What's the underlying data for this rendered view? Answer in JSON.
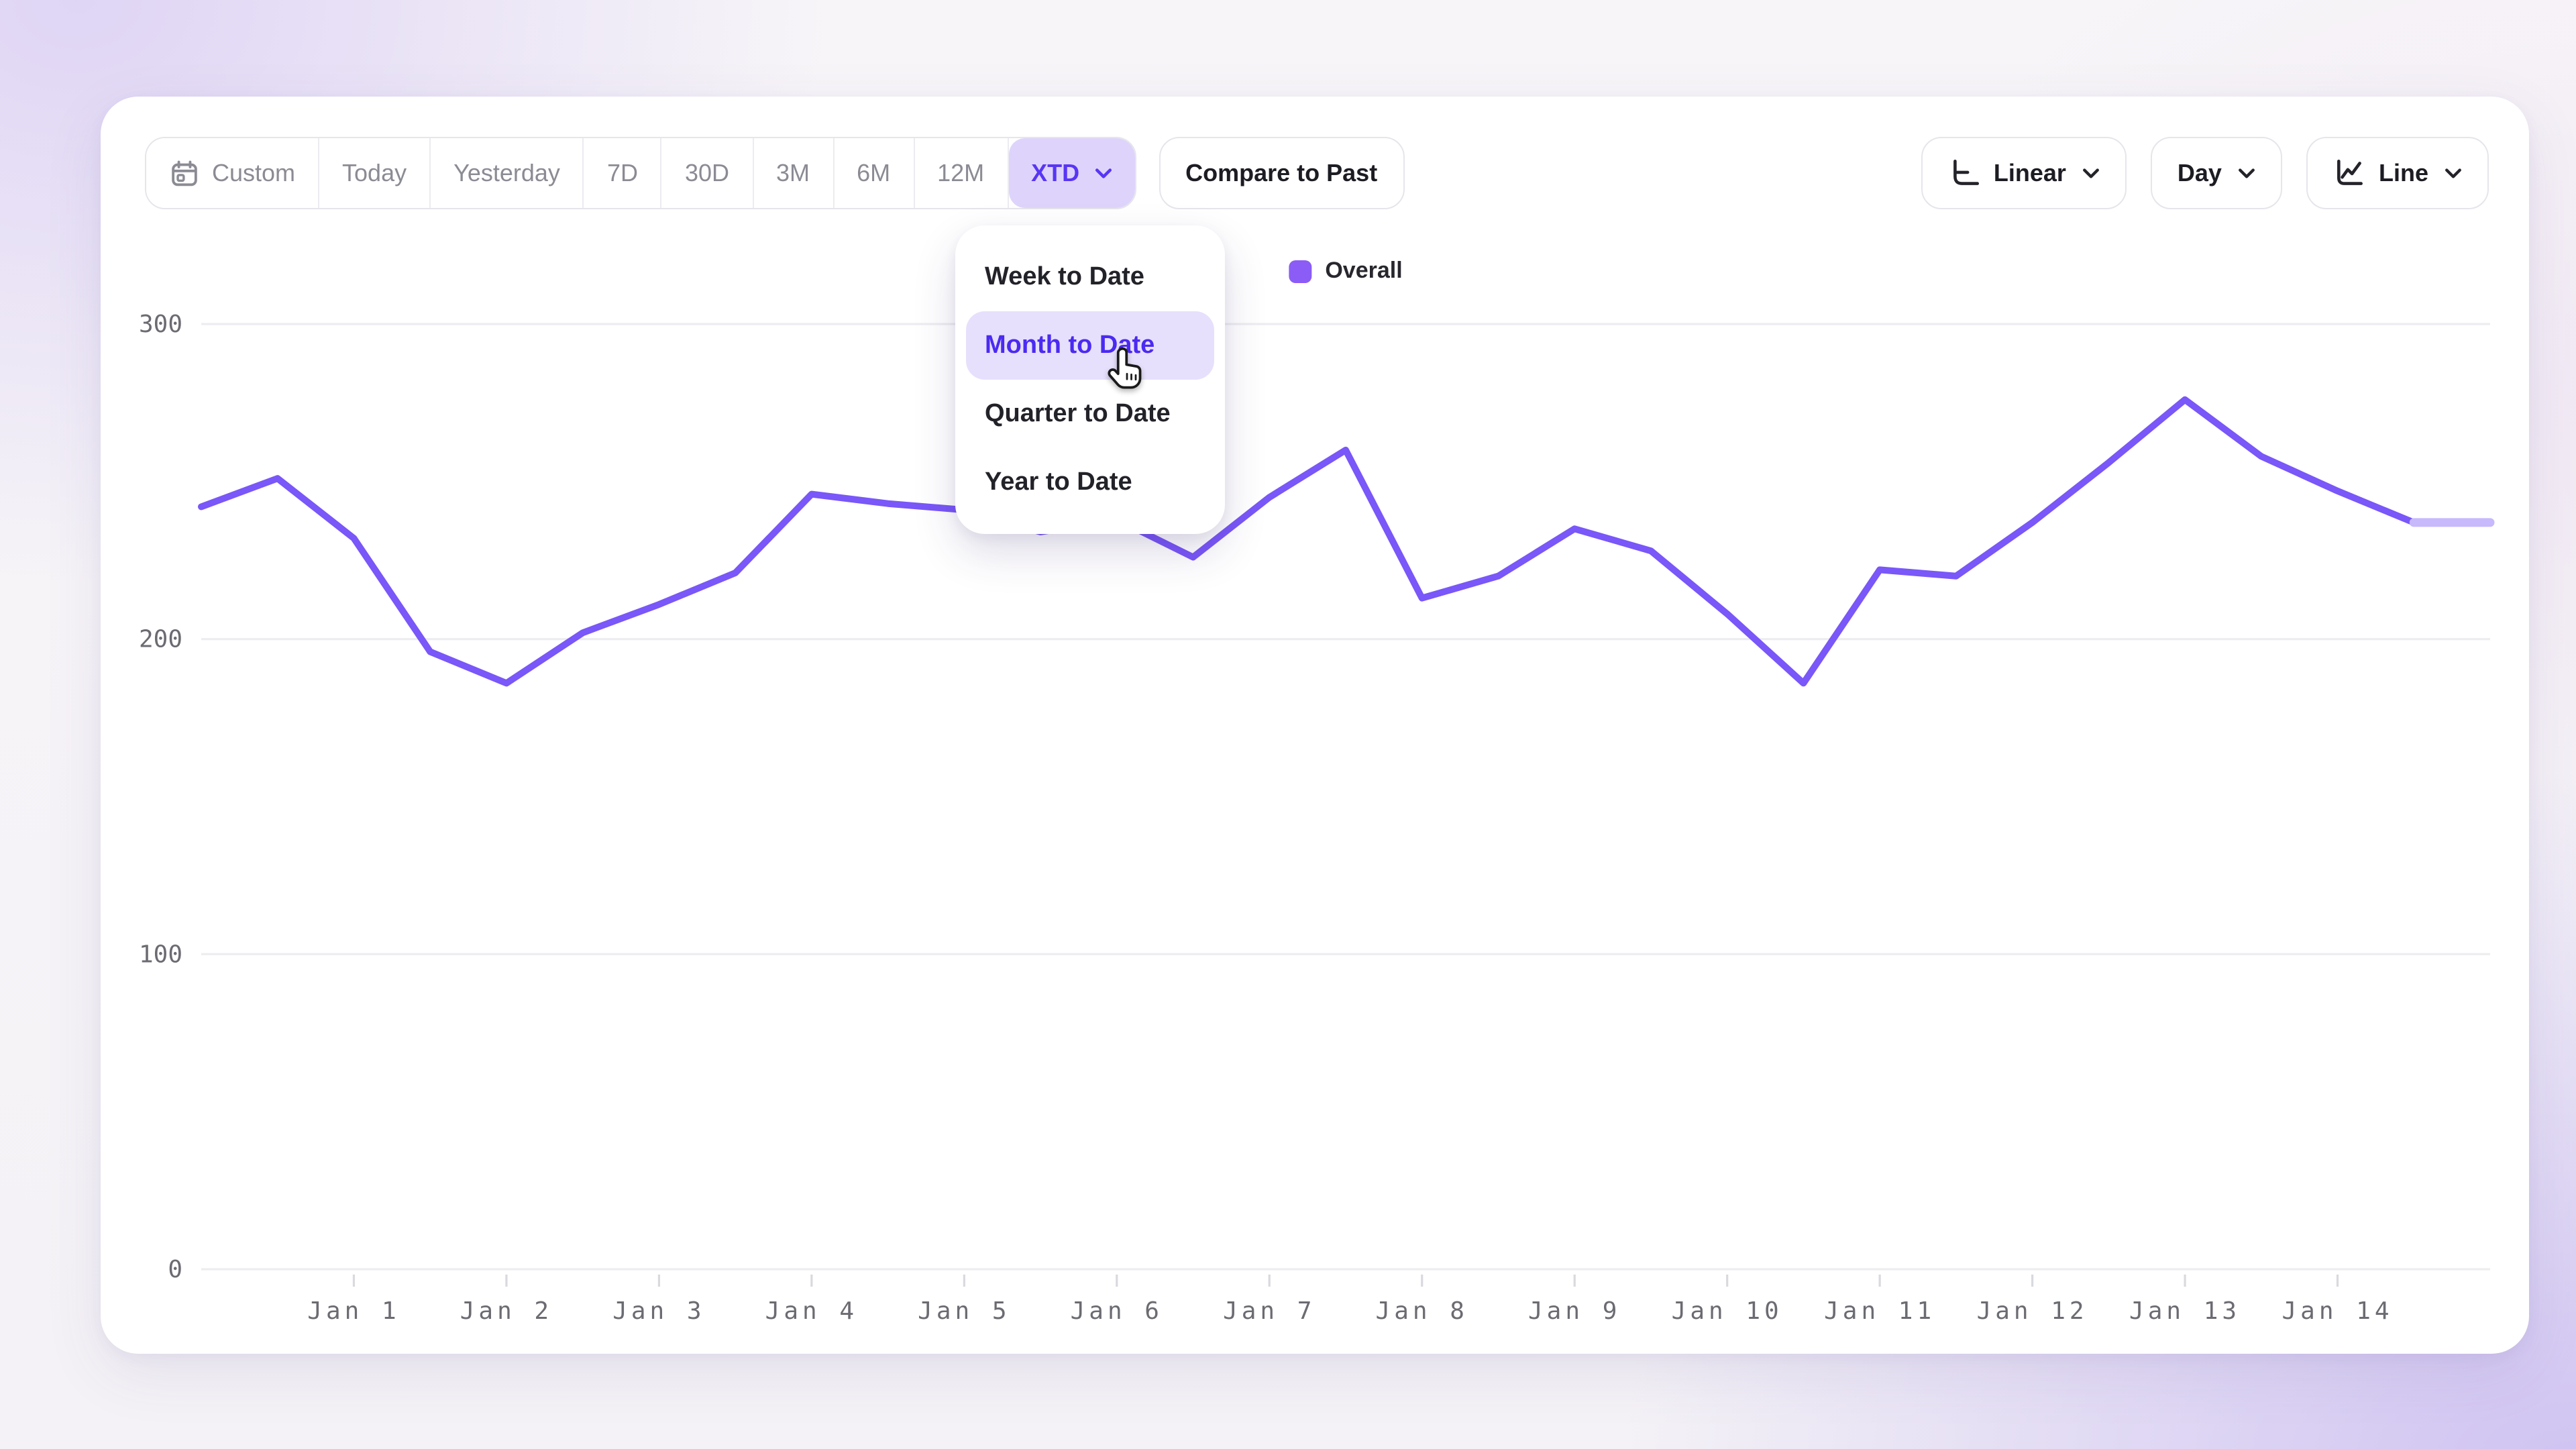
{
  "toolbar": {
    "ranges": [
      {
        "label": "Custom",
        "icon": "calendar",
        "selected": false
      },
      {
        "label": "Today",
        "selected": false
      },
      {
        "label": "Yesterday",
        "selected": false
      },
      {
        "label": "7D",
        "selected": false
      },
      {
        "label": "30D",
        "selected": false
      },
      {
        "label": "3M",
        "selected": false
      },
      {
        "label": "6M",
        "selected": false
      },
      {
        "label": "12M",
        "selected": false
      },
      {
        "label": "XTD",
        "selected": true,
        "chevron": true
      }
    ],
    "compare_label": "Compare to Past",
    "scale_label": "Linear",
    "granularity_label": "Day",
    "chart_type_label": "Line"
  },
  "dropdown": {
    "items": [
      {
        "label": "Week to Date",
        "highlighted": false
      },
      {
        "label": "Month to Date",
        "highlighted": true
      },
      {
        "label": "Quarter to Date",
        "highlighted": false
      },
      {
        "label": "Year to Date",
        "highlighted": false
      }
    ]
  },
  "legend": {
    "series_label": "Overall",
    "swatch_color": "#8b5cf6"
  },
  "chart_data": {
    "type": "line",
    "series": [
      {
        "name": "Overall",
        "color": "#7957f8",
        "values": [
          242,
          251,
          232,
          196,
          186,
          202,
          211,
          221,
          246,
          243,
          241,
          234,
          238,
          226,
          245,
          260,
          213,
          220,
          235,
          228,
          208,
          186,
          222,
          220,
          237,
          256,
          276,
          258,
          247,
          237,
          237
        ]
      }
    ],
    "points_per_day": 2,
    "x_labels": [
      "Jan 1",
      "Jan 2",
      "Jan 3",
      "Jan 4",
      "Jan 5",
      "Jan 6",
      "Jan 7",
      "Jan 8",
      "Jan 9",
      "Jan 10",
      "Jan 11",
      "Jan 12",
      "Jan 13",
      "Jan 14"
    ],
    "x_label_point_indices": [
      2,
      4,
      6,
      8,
      10,
      12,
      14,
      16,
      18,
      20,
      22,
      24,
      26,
      28
    ],
    "ylim": [
      0,
      300
    ],
    "yticks": [
      0,
      100,
      200,
      300
    ],
    "grid": "horizontal",
    "legend_position": "top-center",
    "projection": {
      "last_segment_light": true,
      "color": "#c7b9fb"
    }
  },
  "colors": {
    "accent": "#7957f8",
    "accent_light": "#c7b9fb",
    "selected_chip_bg": "#ded4fb",
    "selected_chip_text": "#5836f4",
    "menu_highlight_bg": "#e7e0fc",
    "menu_highlight_text": "#4b2af2",
    "gridline": "#ededf1",
    "axis_label": "#6b6b72",
    "muted_text": "#8b8b94",
    "dark_text": "#1c1c23"
  }
}
